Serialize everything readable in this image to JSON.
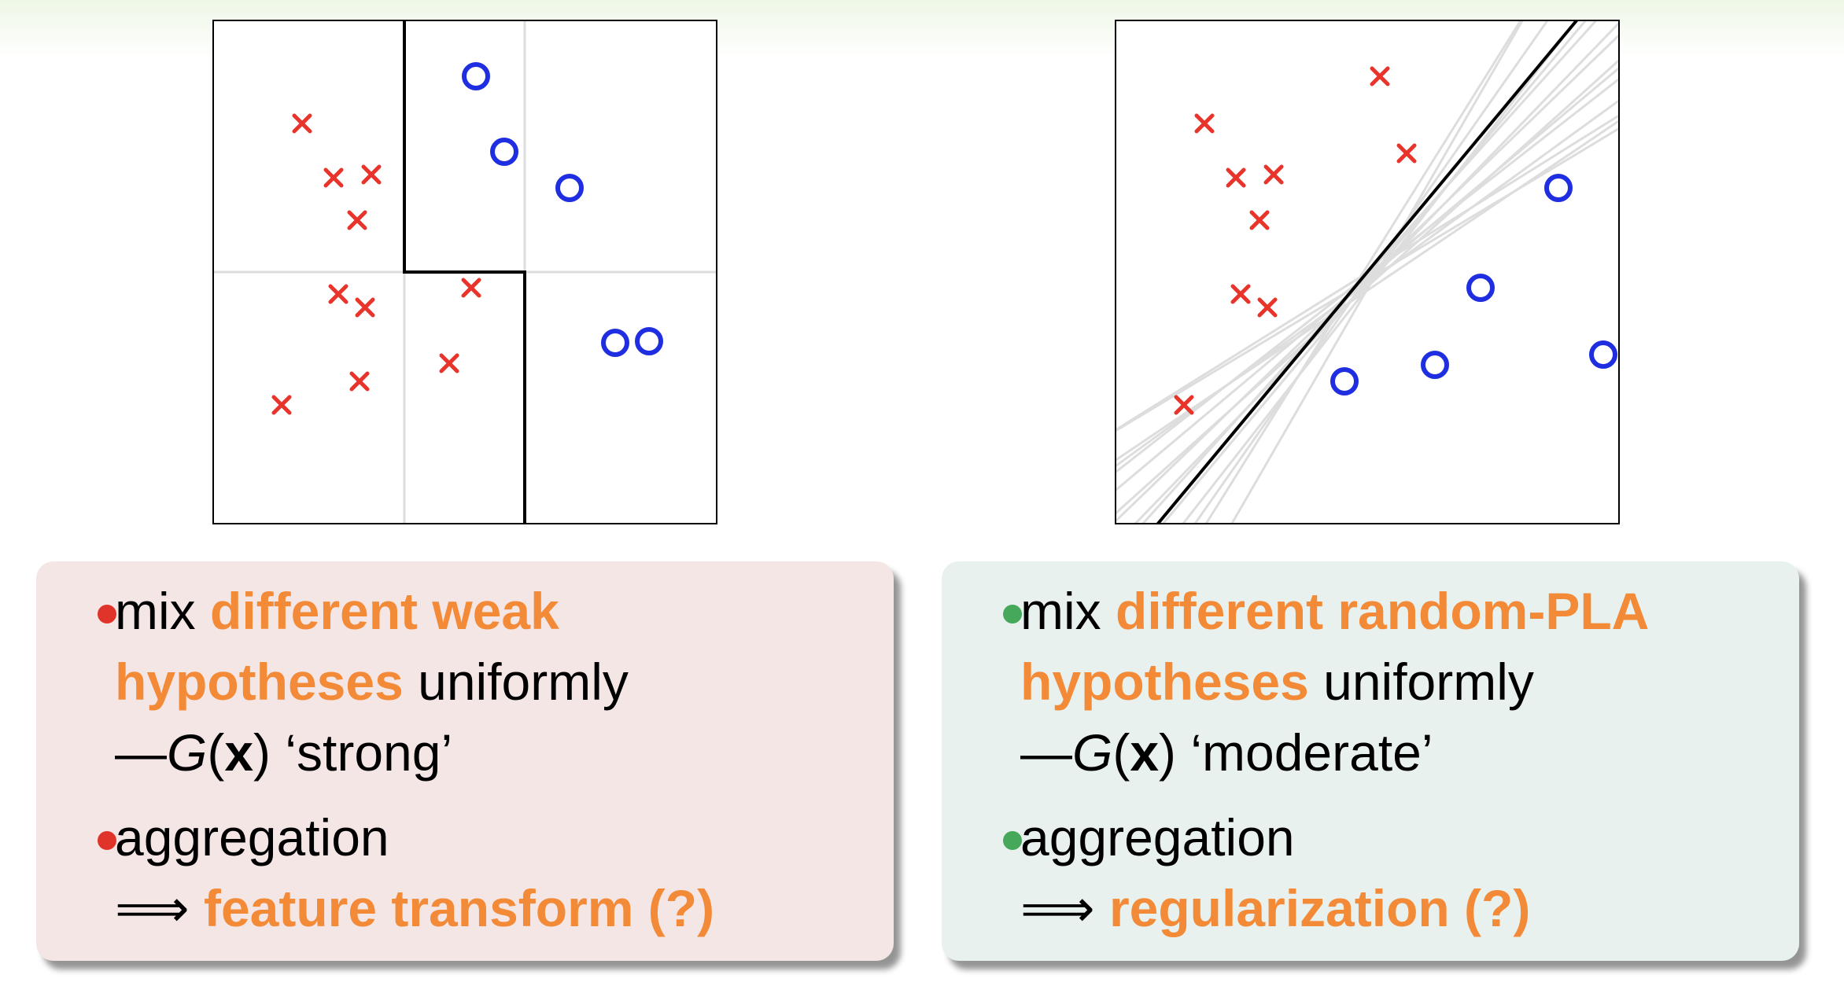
{
  "left_panel": {
    "plot": {
      "class_x_color": "#e8342b",
      "class_o_color": "#1e2ee0",
      "boundary_color": "#000000",
      "grid_color": "#dddddd"
    },
    "bullet1": {
      "word_mix": "mix",
      "highlight_a": "different weak",
      "highlight_b": "hypotheses",
      "word_uniformly": "uniformly",
      "dash": "—",
      "G": "G",
      "x": "x",
      "quality": "‘strong’"
    },
    "bullet2": {
      "word": "aggregation",
      "arrow": "⟹",
      "result": "feature transform (?)"
    }
  },
  "right_panel": {
    "plot": {
      "class_x_color": "#e8342b",
      "class_o_color": "#1e2ee0",
      "boundary_color": "#000000",
      "random_pla_color": "#dddddd"
    },
    "bullet1": {
      "word_mix": "mix",
      "highlight_a": "different random-PLA",
      "highlight_b": "hypotheses",
      "word_uniformly": "uniformly",
      "dash": "—",
      "G": "G",
      "x": "x",
      "quality": "‘moderate’"
    },
    "bullet2": {
      "word": "aggregation",
      "arrow": "⟹",
      "result": "regularization (?)"
    }
  },
  "colors": {
    "highlight": "#f28a37",
    "left_bullet": "#e0342a",
    "right_bullet": "#46a85a",
    "left_box_bg": "#f5e6e6",
    "right_box_bg": "#e9f1ee"
  }
}
